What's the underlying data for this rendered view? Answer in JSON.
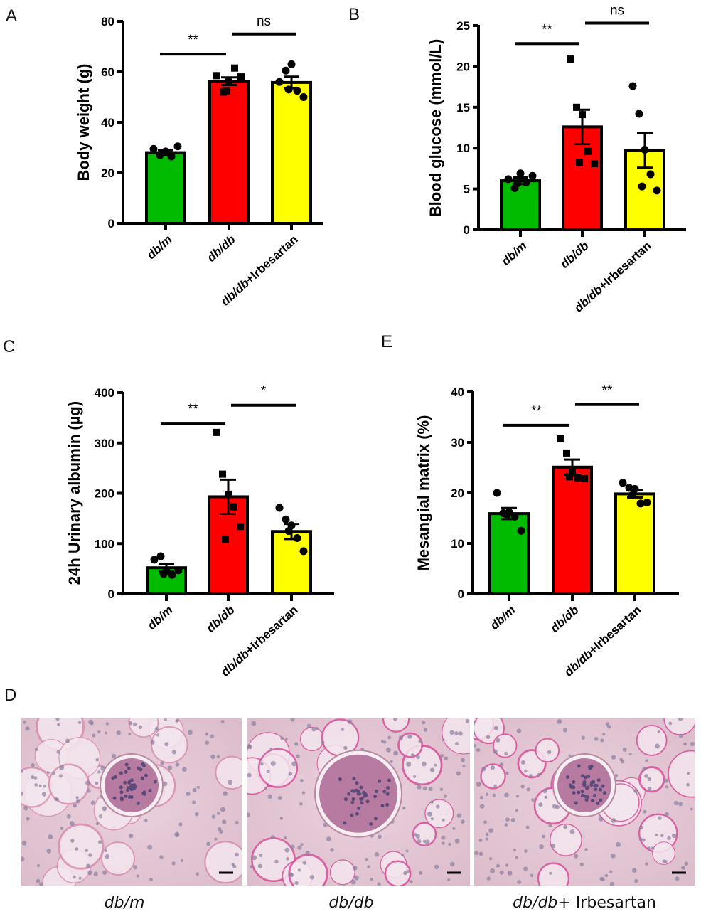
{
  "panel_letters": [
    "A",
    "B",
    "C",
    "E",
    "D"
  ],
  "colors": {
    "db_m": "#00bb00",
    "db_db": "#ff0000",
    "irbesartan": "#ffff00",
    "axis": "#000000"
  },
  "chart_data": [
    {
      "id": "A",
      "type": "bar",
      "ylabel": "Body weight (g)",
      "ylim": [
        0,
        80
      ],
      "yticks": [
        0,
        20,
        40,
        60,
        80
      ],
      "categories": [
        {
          "italic": "db/m",
          "rest": ""
        },
        {
          "italic": "db/db",
          "rest": ""
        },
        {
          "italic": "db/db",
          "rest": "+Irbesartan"
        }
      ],
      "means": [
        28,
        56.3,
        55.8
      ],
      "sem": [
        1.0,
        1.5,
        2.3
      ],
      "points": [
        [
          29.5,
          27,
          28.5,
          26.5,
          30.5,
          28
        ],
        [
          58.5,
          52,
          56,
          61.5,
          58,
          52.5
        ],
        [
          56,
          60.5,
          63,
          52.5,
          50,
          53
        ]
      ],
      "markers": [
        "circle",
        "square",
        "circle"
      ],
      "significance": [
        {
          "from": 0,
          "to": 1,
          "label": "**",
          "y": 67
        },
        {
          "from": 1,
          "to": 2,
          "label": "ns",
          "y": 75
        }
      ]
    },
    {
      "id": "B",
      "type": "bar",
      "ylabel": "Blood glucose (mmol/L)",
      "ylim": [
        0,
        25
      ],
      "yticks": [
        0,
        5,
        10,
        15,
        20,
        25
      ],
      "categories": [
        {
          "italic": "db/m",
          "rest": ""
        },
        {
          "italic": "db/db",
          "rest": ""
        },
        {
          "italic": "db/db",
          "rest": "+Irbesartan"
        }
      ],
      "means": [
        6.0,
        12.6,
        9.7
      ],
      "sem": [
        0.4,
        2.1,
        2.1
      ],
      "points": [
        [
          6.2,
          5.1,
          6.9,
          5.8,
          6.6,
          5.7
        ],
        [
          20.9,
          15.0,
          14.1,
          9.6,
          8.1,
          8.2
        ],
        [
          17.6,
          14.2,
          9.8,
          6.8,
          4.8,
          5.3
        ]
      ],
      "markers": [
        "circle",
        "square",
        "circle"
      ],
      "significance": [
        {
          "from": 0,
          "to": 1,
          "label": "**",
          "y": 22.8
        },
        {
          "from": 1,
          "to": 2,
          "label": "ns",
          "y": 25.3
        }
      ]
    },
    {
      "id": "C",
      "type": "bar",
      "ylabel": "24h Urinary albumin (µg)",
      "ylim": [
        0,
        400
      ],
      "yticks": [
        0,
        100,
        200,
        300,
        400
      ],
      "categories": [
        {
          "italic": "db/m",
          "rest": ""
        },
        {
          "italic": "db/db",
          "rest": ""
        },
        {
          "italic": "db/db",
          "rest": "+Irbesartan"
        }
      ],
      "means": [
        52,
        193,
        124
      ],
      "sem": [
        8,
        34,
        15
      ],
      "points": [
        [
          68,
          75,
          45,
          38,
          47,
          40
        ],
        [
          321,
          238,
          198,
          173,
          134,
          109
        ],
        [
          171,
          148,
          136,
          111,
          85,
          125
        ]
      ],
      "markers": [
        "circle",
        "square",
        "circle"
      ],
      "significance": [
        {
          "from": 0,
          "to": 1,
          "label": "**",
          "y": 339
        },
        {
          "from": 1,
          "to": 2,
          "label": "*",
          "y": 375
        }
      ]
    },
    {
      "id": "E",
      "type": "bar",
      "ylabel": "Mesangial matrix (%)",
      "ylim": [
        0,
        40
      ],
      "yticks": [
        0,
        10,
        20,
        30,
        40
      ],
      "categories": [
        {
          "italic": "db/m",
          "rest": ""
        },
        {
          "italic": "db/db",
          "rest": ""
        },
        {
          "italic": "db/db",
          "rest": "+Irbesartan"
        }
      ],
      "means": [
        15.9,
        25.1,
        19.8
      ],
      "sem": [
        1.1,
        1.5,
        0.7
      ],
      "points": [
        [
          20,
          16,
          16.2,
          15.3,
          12.5,
          15.8
        ],
        [
          30.7,
          27.9,
          24,
          23,
          22.8,
          23.2
        ],
        [
          22,
          21,
          20.8,
          17.9,
          18.1,
          19.5
        ]
      ],
      "markers": [
        "circle",
        "square",
        "circle"
      ],
      "significance": [
        {
          "from": 0,
          "to": 1,
          "label": "**",
          "y": 33.4
        },
        {
          "from": 1,
          "to": 2,
          "label": "**",
          "y": 37.5
        }
      ]
    }
  ],
  "micrographs": [
    {
      "italic": "db/m",
      "rest": ""
    },
    {
      "italic": "db/db",
      "rest": ""
    },
    {
      "italic": "db/db",
      "rest": "+ Irbesartan"
    }
  ]
}
